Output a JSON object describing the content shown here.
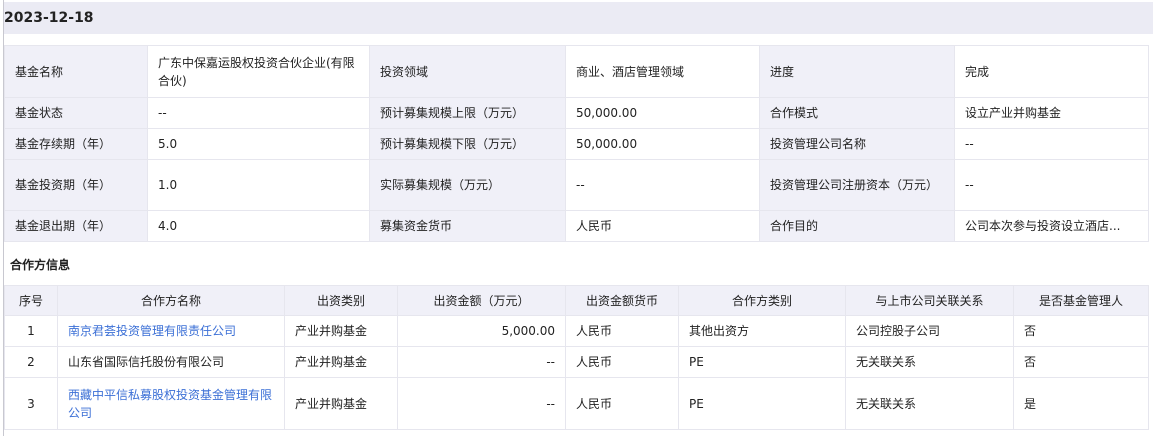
{
  "date": "2023-12-18",
  "info": [
    [
      [
        "基金名称",
        "广东中保嘉运股权投资合伙企业(有限合伙)"
      ],
      [
        "投资领域",
        "商业、酒店管理领域"
      ],
      [
        "进度",
        "完成"
      ]
    ],
    [
      [
        "基金状态",
        "--"
      ],
      [
        "预计募集规模上限（万元）",
        "50,000.00"
      ],
      [
        "合作模式",
        "设立产业并购基金"
      ]
    ],
    [
      [
        "基金存续期（年）",
        "5.0"
      ],
      [
        "预计募集规模下限（万元）",
        "50,000.00"
      ],
      [
        "投资管理公司名称",
        "--"
      ]
    ],
    [
      [
        "基金投资期（年）",
        "1.0"
      ],
      [
        "实际募集规模（万元）",
        "--"
      ],
      [
        "投资管理公司注册资本（万元）",
        "--"
      ]
    ],
    [
      [
        "基金退出期（年）",
        "4.0"
      ],
      [
        "募集资金货币",
        "人民币"
      ],
      [
        "合作目的",
        "公司本次参与投资设立酒店..."
      ]
    ]
  ],
  "partners_title": "合作方信息",
  "partners_headers": [
    "序号",
    "合作方名称",
    "出资类别",
    "出资金额（万元）",
    "出资金额货币",
    "合作方类别",
    "与上市公司关联关系",
    "是否基金管理人"
  ],
  "partners": [
    [
      "1",
      "南京君荟投资管理有限责任公司",
      "产业并购基金",
      "5,000.00",
      "人民币",
      "其他出资方",
      "公司控股子公司",
      "否"
    ],
    [
      "2",
      "山东省国际信托股份有限公司",
      "产业并购基金",
      "--",
      "人民币",
      "PE",
      "无关联关系",
      "否"
    ],
    [
      "3",
      "西藏中平信私募股权投资基金管理有限公司",
      "产业并购基金",
      "--",
      "人民币",
      "PE",
      "无关联关系",
      "是"
    ]
  ],
  "partner_links": [
    true,
    false,
    true
  ],
  "link_color": "#3b6fd6"
}
